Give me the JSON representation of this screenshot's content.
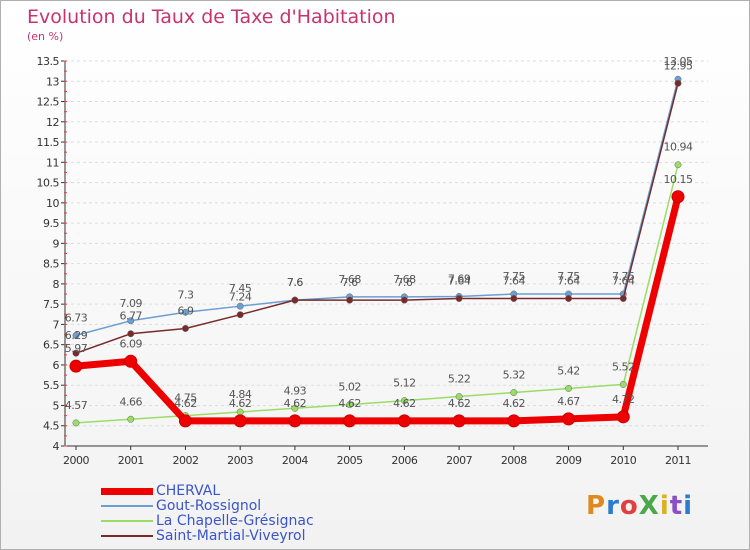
{
  "title": "Evolution du Taux de Taxe d'Habitation",
  "subtitle": "(en %)",
  "logo": {
    "text": "ProXiti",
    "colors": [
      "#e08a1e",
      "#2b7bd1",
      "#e04040",
      "#4aa84a",
      "#d9b21c",
      "#8a4ec7",
      "#2b7bd1"
    ]
  },
  "chart_data": {
    "type": "line",
    "x": [
      "2000",
      "2001",
      "2002",
      "2003",
      "2004",
      "2005",
      "2006",
      "2007",
      "2008",
      "2009",
      "2010",
      "2011"
    ],
    "ylim": [
      4,
      13.5
    ],
    "yticks": [
      "4",
      "4.5",
      "5",
      "5.5",
      "6",
      "6.5",
      "7",
      "7.5",
      "8",
      "8.5",
      "9",
      "9.5",
      "10",
      "10.5",
      "11",
      "11.5",
      "12",
      "12.5",
      "13",
      "13.5"
    ],
    "series": [
      {
        "name": "CHERVAL",
        "color": "#ee0000",
        "values": [
          5.97,
          6.09,
          4.62,
          4.62,
          4.62,
          4.62,
          4.62,
          4.62,
          4.62,
          4.67,
          4.72,
          10.15
        ],
        "labels": [
          "5.97",
          "6.09",
          "4.62",
          "4.62",
          "4.62",
          "4.62",
          "4.62",
          "4.62",
          "4.62",
          "4.67",
          "4.72",
          "10.15"
        ]
      },
      {
        "name": "Gout-Rossignol",
        "color": "#6a9fd4",
        "values": [
          6.73,
          7.09,
          7.3,
          7.45,
          7.6,
          7.68,
          7.68,
          7.69,
          7.75,
          7.75,
          7.75,
          13.05
        ],
        "labels": [
          "6.73",
          "7.09",
          "7.3",
          "7.45",
          "7.6",
          "7.68",
          "7.68",
          "7.69",
          "7.75",
          "7.75",
          "7.75",
          "13.05"
        ]
      },
      {
        "name": "La Chapelle-Grésignac",
        "color": "#99dd66",
        "values": [
          4.57,
          4.66,
          4.75,
          4.84,
          4.93,
          5.02,
          5.12,
          5.22,
          5.32,
          5.42,
          5.52,
          10.94
        ],
        "labels": [
          "4.57",
          "4.66",
          "4.75",
          "4.84",
          "4.93",
          "5.02",
          "5.12",
          "5.22",
          "5.32",
          "5.42",
          "5.52",
          "10.94"
        ]
      },
      {
        "name": "Saint-Martial-Viveyrol",
        "color": "#7a2a2a",
        "values": [
          6.29,
          6.77,
          6.9,
          7.24,
          7.6,
          7.6,
          7.6,
          7.64,
          7.64,
          7.64,
          7.64,
          12.95
        ],
        "labels": [
          "6.29",
          "6.77",
          "6.9",
          "7.24",
          "7.6",
          "7.6",
          "7.6",
          "7.64",
          "7.64",
          "7.64",
          "7.64",
          "12.95"
        ]
      }
    ]
  }
}
